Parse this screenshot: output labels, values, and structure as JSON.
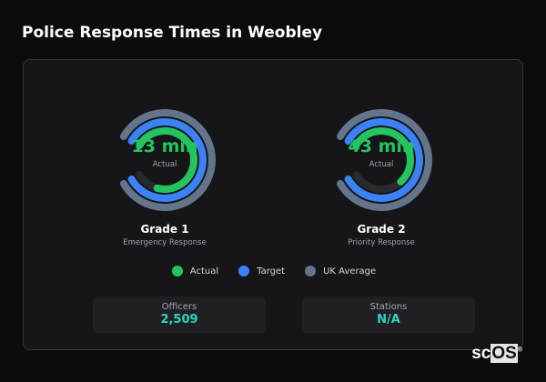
{
  "title": "Police Response Times in Weobley",
  "gauges": [
    {
      "value": "13 min",
      "value_label": "Actual",
      "name": "Grade 1",
      "subtitle": "Emergency Response",
      "actual_fill": 0.85,
      "target_fill": 1.0,
      "uk_fill": 1.0
    },
    {
      "value": "43 min",
      "value_label": "Actual",
      "name": "Grade 2",
      "subtitle": "Priority Response",
      "actual_fill": 0.66,
      "target_fill": 1.0,
      "uk_fill": 1.0
    }
  ],
  "legend": [
    {
      "label": "Actual",
      "color": "#22c55e"
    },
    {
      "label": "Target",
      "color": "#3b82f6"
    },
    {
      "label": "UK Average",
      "color": "#64748b"
    }
  ],
  "stats": [
    {
      "label": "Officers",
      "value": "2,509"
    },
    {
      "label": "Stations",
      "value": "N/A"
    }
  ],
  "colors": {
    "track": "#2a2a2e",
    "accent": "#2dd4bf"
  },
  "logo": {
    "text_a": "sc",
    "text_b": "OS",
    "mark": "®"
  }
}
